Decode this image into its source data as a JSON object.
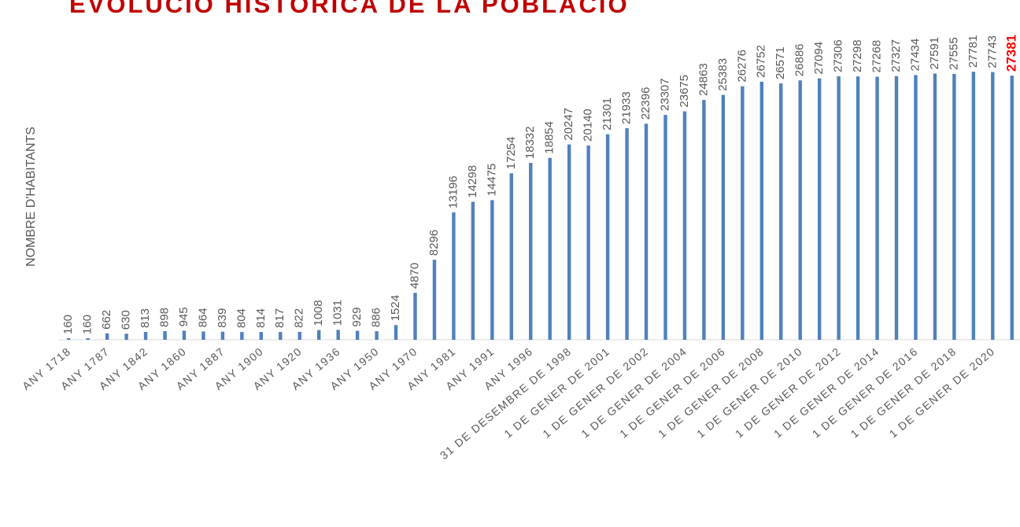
{
  "chart_data": {
    "type": "bar",
    "title": "EVOLUCIÓ HISTÒRICA DE LA POBLACIÓ",
    "y_label": "NOMBRE D'HABITANTS",
    "categories": [
      "ANY 1718",
      null,
      "ANY 1787",
      null,
      "ANY 1842",
      null,
      "ANY 1860",
      null,
      "ANY 1887",
      null,
      "ANY 1900",
      null,
      "ANY 1920",
      null,
      "ANY 1936",
      null,
      "ANY 1950",
      null,
      "ANY 1970",
      null,
      "ANY 1981",
      null,
      "ANY 1991",
      null,
      "ANY 1996",
      null,
      "31 DE DESEMBRE DE 1998",
      null,
      "1 DE GENER DE 2001",
      null,
      "1 DE GENER DE 2002",
      null,
      "1 DE GENER DE 2004",
      null,
      "1 DE GENER DE 2006",
      null,
      "1 DE GENER DE 2008",
      null,
      "1 DE GENER DE 2010",
      null,
      "1 DE GENER DE 2012",
      null,
      "1 DE GENER DE 2014",
      null,
      "1 DE GENER DE 2016",
      null,
      "1 DE GENER DE 2018",
      null,
      "1 DE GENER DE 2020",
      null
    ],
    "values": [
      160,
      160,
      662,
      630,
      813,
      898,
      945,
      864,
      839,
      804,
      814,
      817,
      822,
      1008,
      1031,
      929,
      886,
      1524,
      4870,
      8296,
      13196,
      14298,
      14475,
      17254,
      18332,
      18854,
      20247,
      20140,
      21301,
      21933,
      22396,
      23307,
      23675,
      24863,
      25383,
      26276,
      26752,
      26571,
      26886,
      27094,
      27306,
      27298,
      27268,
      27327,
      27434,
      27591,
      27555,
      27781,
      27743,
      27381
    ],
    "color": "#4f81bd",
    "title_color": "#c00000",
    "last_label_color": "#ff0000",
    "ylim": [
      0,
      30000
    ]
  }
}
